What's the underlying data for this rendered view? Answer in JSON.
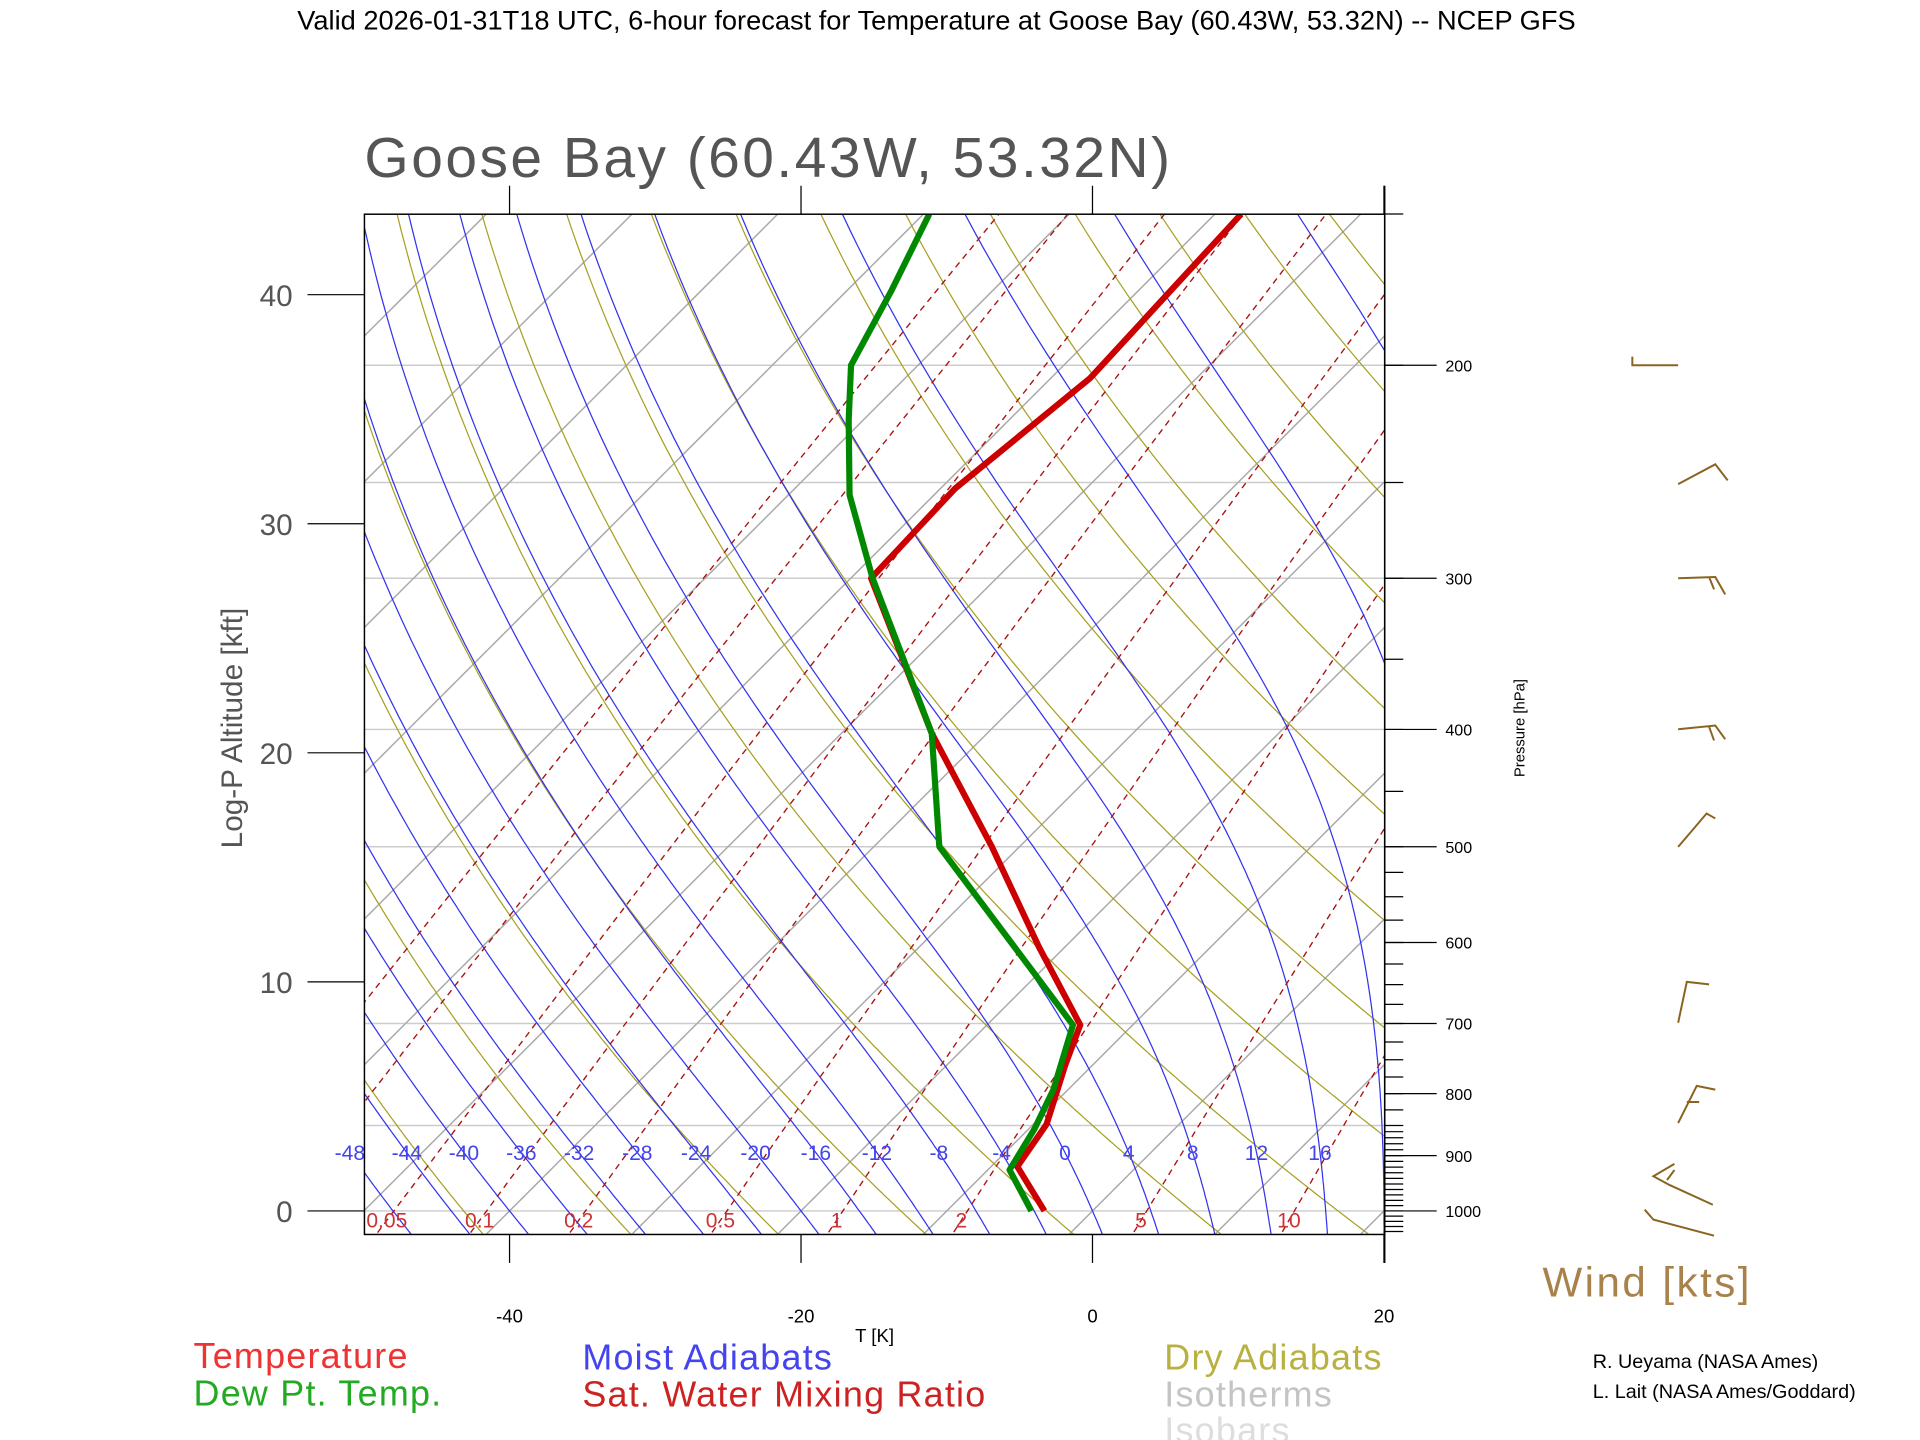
{
  "chart_data": {
    "type": "line",
    "subtype": "skew-t log-p diagram",
    "header": "Valid 2026-01-31T18 UTC, 6-hour forecast for Temperature at Goose Bay (60.43W, 53.32N) -- NCEP GFS",
    "title": "Goose Bay (60.43W, 53.32N)",
    "xlabel": "T [K]",
    "ylabel_left": "Log-P Altitude [kft]",
    "ylabel_right": "Pressure [hPa]",
    "xlim": [
      -50,
      20
    ],
    "plim_hpa": [
      1046,
      150
    ],
    "x_ticks": [
      "-40",
      "-20",
      "0",
      "20"
    ],
    "x_tick_values": [
      -40,
      -20,
      0,
      20
    ],
    "altitude_ticks": [
      "0",
      "10",
      "20",
      "30",
      "40"
    ],
    "altitude_tick_values_kft": [
      0,
      10,
      20,
      30,
      40
    ],
    "pressure_ticks": [
      "1000",
      "900",
      "800",
      "700",
      "600",
      "500",
      "400",
      "300",
      "200"
    ],
    "pressure_tick_values": [
      1000,
      900,
      800,
      700,
      600,
      500,
      400,
      300,
      200
    ],
    "series": [
      {
        "name": "Temperature",
        "color": "#cc0000",
        "pressure_hpa": [
          1000,
          919,
          848,
          757,
          702,
          605,
          500,
          403,
          300,
          253,
          205,
          172,
          150
        ],
        "temperature_c": [
          -3.3,
          -8.2,
          -9.1,
          -11.9,
          -13.6,
          -21.8,
          -31.9,
          -43.8,
          -58.6,
          -59.0,
          -57.3,
          -57.8,
          -58.2
        ]
      },
      {
        "name": "Dew Pt. Temp.",
        "color": "#008800",
        "pressure_hpa": [
          1000,
          925,
          856,
          794,
          702,
          500,
          403,
          300,
          256,
          222,
          200,
          174,
          150
        ],
        "temperature_c": [
          -4.2,
          -8.5,
          -9.6,
          -11.0,
          -14.1,
          -35.5,
          -43.8,
          -58.5,
          -65.8,
          -71.0,
          -74.6,
          -76.9,
          -79.6
        ]
      }
    ],
    "moist_adiabat_labels": [
      "-48",
      "-44",
      "-40",
      "-36",
      "-32",
      "-28",
      "-24",
      "-20",
      "-16",
      "-12",
      "-8",
      "-4",
      "0",
      "4",
      "8",
      "12",
      "16"
    ],
    "moist_adiabat_values": [
      -48,
      -44,
      -40,
      -36,
      -32,
      -28,
      -24,
      -20,
      -16,
      -12,
      -8,
      -4,
      0,
      4,
      8,
      12,
      16
    ],
    "mixing_ratio_labels": [
      "0.05",
      "0.1",
      "0.2",
      "0.5",
      "1",
      "2",
      "5",
      "10"
    ],
    "mixing_ratio_values": [
      0.05,
      0.1,
      0.2,
      0.5,
      1,
      2,
      5,
      10
    ],
    "wind_label": "Wind [kts]",
    "wind_levels_hpa": [
      200,
      250,
      300,
      400,
      500,
      700,
      850,
      925,
      1000
    ],
    "legend": {
      "temperature": "Temperature",
      "dewpoint": "Dew Pt. Temp.",
      "moist_adiabats": "Moist Adiabats",
      "mixing_ratio": "Sat. Water Mixing Ratio",
      "dry_adiabats": "Dry Adiabats",
      "isotherms": "Isotherms",
      "isobars": "Isobars"
    },
    "colors": {
      "temperature": "#dd2222",
      "dewpoint": "#22aa22",
      "moist": "#3333ee",
      "mixing": "#aa1111",
      "dry": "#a8a022",
      "iso": "#bbbbbb",
      "wind": "#8a6420"
    },
    "credits": [
      "R. Ueyama (NASA Ames)",
      "L. Lait (NASA Ames/Goddard)"
    ]
  }
}
